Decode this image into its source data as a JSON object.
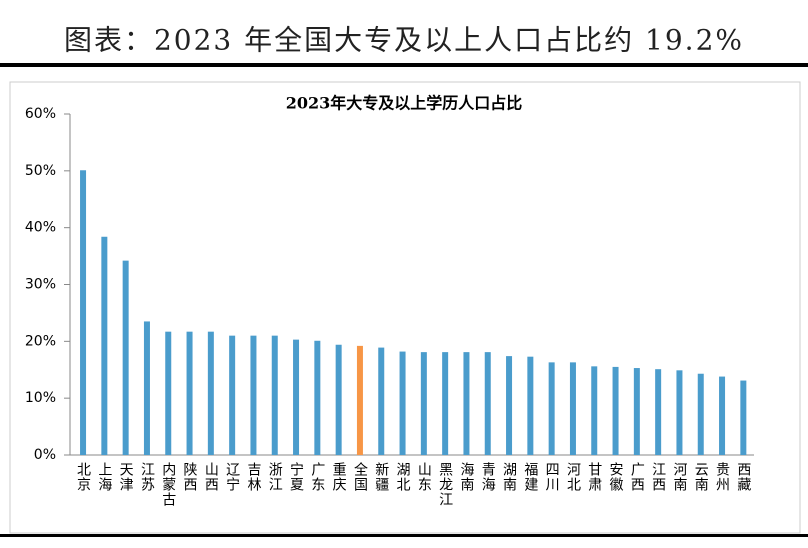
{
  "header": {
    "title": "图表：2023 年全国大专及以上人口占比约 19.2%"
  },
  "chart_data": {
    "type": "bar",
    "title": "2023年大专及以上学历人口占比",
    "categories": [
      "北京",
      "上海",
      "天津",
      "江苏",
      "内蒙古",
      "陕西",
      "山西",
      "辽宁",
      "吉林",
      "浙江",
      "宁夏",
      "广东",
      "重庆",
      "全国",
      "新疆",
      "湖北",
      "山东",
      "黑龙江",
      "海南",
      "青海",
      "湖南",
      "福建",
      "四川",
      "河北",
      "甘肃",
      "安徽",
      "广西",
      "江西",
      "河南",
      "云南",
      "贵州",
      "西藏"
    ],
    "values": [
      50.1,
      38.4,
      34.2,
      23.5,
      21.7,
      21.7,
      21.7,
      21.0,
      21.0,
      21.0,
      20.3,
      20.1,
      19.4,
      19.2,
      18.9,
      18.2,
      18.1,
      18.1,
      18.1,
      18.1,
      17.4,
      17.3,
      16.3,
      16.3,
      15.6,
      15.5,
      15.3,
      15.1,
      14.9,
      14.3,
      13.8,
      13.1
    ],
    "colors": [
      "#4a9ccc",
      "#4a9ccc",
      "#4a9ccc",
      "#4a9ccc",
      "#4a9ccc",
      "#4a9ccc",
      "#4a9ccc",
      "#4a9ccc",
      "#4a9ccc",
      "#4a9ccc",
      "#4a9ccc",
      "#4a9ccc",
      "#4a9ccc",
      "#f79646",
      "#4a9ccc",
      "#4a9ccc",
      "#4a9ccc",
      "#4a9ccc",
      "#4a9ccc",
      "#4a9ccc",
      "#4a9ccc",
      "#4a9ccc",
      "#4a9ccc",
      "#4a9ccc",
      "#4a9ccc",
      "#4a9ccc",
      "#4a9ccc",
      "#4a9ccc",
      "#4a9ccc",
      "#4a9ccc",
      "#4a9ccc",
      "#4a9ccc"
    ],
    "ylim": [
      0,
      60
    ],
    "yticks": [
      {
        "value": 0,
        "label": "0%"
      },
      {
        "value": 10,
        "label": "10%"
      },
      {
        "value": 20,
        "label": "20%"
      },
      {
        "value": 30,
        "label": "30%"
      },
      {
        "value": 40,
        "label": "40%"
      },
      {
        "value": 50,
        "label": "50%"
      },
      {
        "value": 60,
        "label": "60%"
      }
    ],
    "grid": false
  }
}
